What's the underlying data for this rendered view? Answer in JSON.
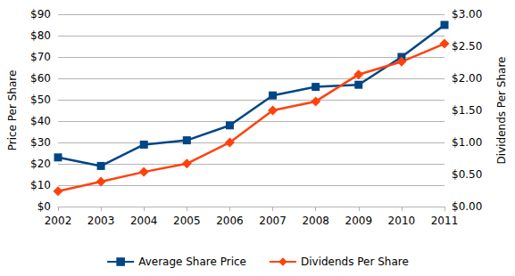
{
  "chart_data": {
    "type": "line",
    "categories": [
      "2002",
      "2003",
      "2004",
      "2005",
      "2006",
      "2007",
      "2008",
      "2009",
      "2010",
      "2011"
    ],
    "y_label": "Price Per Share",
    "y2_label": "Dividends Per Share",
    "ylim": [
      0,
      90
    ],
    "yticks": [
      {
        "value": 0,
        "label": "$0"
      },
      {
        "value": 10,
        "label": "$10"
      },
      {
        "value": 20,
        "label": "$20"
      },
      {
        "value": 30,
        "label": "$30"
      },
      {
        "value": 40,
        "label": "$40"
      },
      {
        "value": 50,
        "label": "$50"
      },
      {
        "value": 60,
        "label": "$60"
      },
      {
        "value": 70,
        "label": "$70"
      },
      {
        "value": 80,
        "label": "$80"
      },
      {
        "value": 90,
        "label": "$90"
      }
    ],
    "y2lim": [
      0,
      3
    ],
    "y2ticks": [
      {
        "value": 0,
        "label": "$0.00"
      },
      {
        "value": 0.5,
        "label": "$0.50"
      },
      {
        "value": 1,
        "label": "$1.00"
      },
      {
        "value": 1.5,
        "label": "$1.50"
      },
      {
        "value": 2,
        "label": "$2.00"
      },
      {
        "value": 2.5,
        "label": "$2.50"
      },
      {
        "value": 3,
        "label": "$3.00"
      }
    ],
    "grid": true,
    "legend": "bottom",
    "series": [
      {
        "name": "Average Share Price",
        "color": "#004586",
        "marker": "square",
        "line_style": "solid",
        "values": [
          23,
          19,
          29,
          31,
          38,
          52,
          56,
          57,
          70,
          85
        ]
      },
      {
        "name": "Dividends Per Share",
        "color": "#ff420e",
        "marker": "diamond",
        "line_style": "solid",
        "axis": "y2",
        "values": [
          0.24,
          0.39,
          0.54,
          0.67,
          1.0,
          1.5,
          1.64,
          2.06,
          2.26,
          2.54
        ]
      }
    ]
  }
}
